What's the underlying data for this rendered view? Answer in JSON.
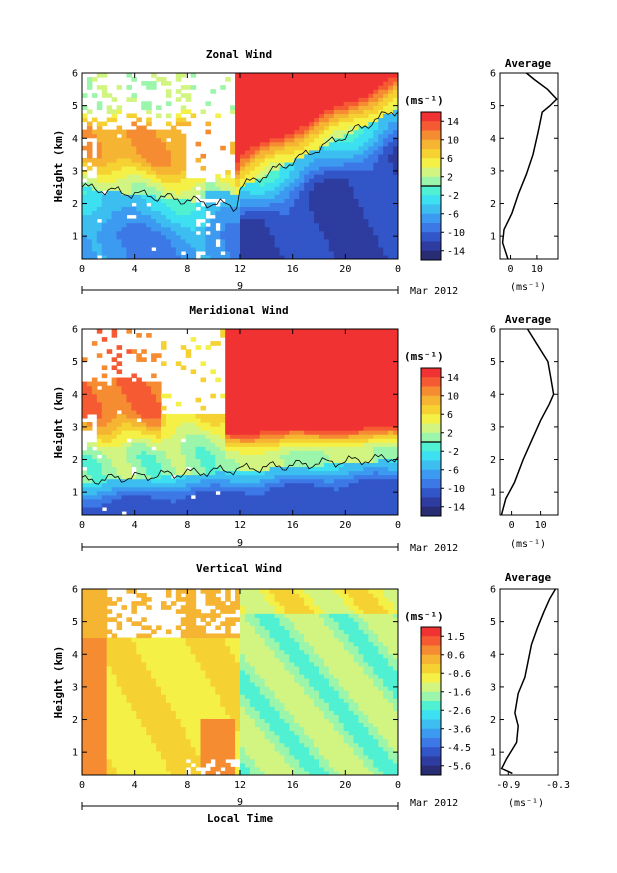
{
  "chart_data": [
    {
      "type": "heatmap",
      "title": "Zonal Wind",
      "ylabel": "Height (km)",
      "x_ticks": [
        "0",
        "4",
        "8",
        "12",
        "16",
        "20",
        "0"
      ],
      "y_ticks": [
        "1",
        "2",
        "3",
        "4",
        "5",
        "6"
      ],
      "xlim": [
        0,
        24
      ],
      "ylim": [
        0.3,
        6
      ],
      "date_tick": "9",
      "date_label": "Mar 2012",
      "colorbar": {
        "unit": "(ms⁻¹)",
        "ticks": [
          "14",
          "10",
          "6",
          "2",
          "-2",
          "-6",
          "-10",
          "-14"
        ],
        "range": [
          -16,
          16
        ]
      },
      "average": {
        "title": "Average",
        "xlabel": "(ms⁻¹)",
        "x_ticks": [
          "0",
          "10"
        ],
        "xlim": [
          -4,
          18
        ],
        "profile": [
          [
            0.3,
            -1
          ],
          [
            0.8,
            -3
          ],
          [
            1.2,
            -2.5
          ],
          [
            1.7,
            0.5
          ],
          [
            2.3,
            3
          ],
          [
            2.9,
            6
          ],
          [
            3.5,
            8.5
          ],
          [
            4.2,
            10.5
          ],
          [
            4.8,
            12
          ],
          [
            5.0,
            15
          ],
          [
            5.2,
            17.5
          ],
          [
            5.5,
            14
          ],
          [
            5.8,
            9
          ],
          [
            6.0,
            6
          ]
        ]
      }
    },
    {
      "type": "heatmap",
      "title": "Meridional Wind",
      "ylabel": "Height (km)",
      "x_ticks": [
        "0",
        "4",
        "8",
        "12",
        "16",
        "20",
        "0"
      ],
      "y_ticks": [
        "1",
        "2",
        "3",
        "4",
        "5",
        "6"
      ],
      "xlim": [
        0,
        24
      ],
      "ylim": [
        0.3,
        6
      ],
      "date_tick": "9",
      "date_label": "Mar 2012",
      "colorbar": {
        "unit": "(ms⁻¹)",
        "ticks": [
          "14",
          "10",
          "6",
          "2",
          "-2",
          "-6",
          "-10",
          "-14"
        ],
        "range": [
          -16,
          16
        ]
      },
      "average": {
        "title": "Average",
        "xlabel": "(ms⁻¹)",
        "x_ticks": [
          "0",
          "10"
        ],
        "xlim": [
          -4,
          16
        ],
        "profile": [
          [
            0.3,
            -3.5
          ],
          [
            0.8,
            -2
          ],
          [
            1.3,
            1
          ],
          [
            2.0,
            4
          ],
          [
            2.6,
            7
          ],
          [
            3.2,
            10
          ],
          [
            3.7,
            13
          ],
          [
            4.0,
            14.5
          ],
          [
            4.5,
            13.5
          ],
          [
            5.0,
            12.5
          ],
          [
            5.5,
            9
          ],
          [
            6.0,
            5.5
          ]
        ]
      }
    },
    {
      "type": "heatmap",
      "title": "Vertical Wind",
      "ylabel": "Height (km)",
      "xlabel": "Local Time",
      "x_ticks": [
        "0",
        "4",
        "8",
        "12",
        "16",
        "20",
        "0"
      ],
      "y_ticks": [
        "1",
        "2",
        "3",
        "4",
        "5",
        "6"
      ],
      "xlim": [
        0,
        24
      ],
      "ylim": [
        0.3,
        6
      ],
      "date_tick": "9",
      "date_label": "Mar 2012",
      "colorbar": {
        "unit": "(ms⁻¹)",
        "ticks": [
          "1.5",
          "0.6",
          "-0.6",
          "-1.6",
          "-2.6",
          "-3.6",
          "-4.5",
          "-5.6"
        ],
        "range": [
          -6,
          2
        ]
      },
      "average": {
        "title": "Average",
        "xlabel": "(ms⁻¹)",
        "x_ticks": [
          "-0.9",
          "-0.3"
        ],
        "xlim": [
          -1.0,
          -0.3
        ],
        "profile": [
          [
            0.35,
            -0.85
          ],
          [
            0.5,
            -0.98
          ],
          [
            0.8,
            -0.92
          ],
          [
            1.3,
            -0.8
          ],
          [
            1.8,
            -0.78
          ],
          [
            2.2,
            -0.82
          ],
          [
            2.8,
            -0.78
          ],
          [
            3.3,
            -0.7
          ],
          [
            3.8,
            -0.66
          ],
          [
            4.3,
            -0.62
          ],
          [
            4.8,
            -0.55
          ],
          [
            5.3,
            -0.47
          ],
          [
            5.7,
            -0.4
          ],
          [
            6.0,
            -0.33
          ]
        ]
      }
    }
  ]
}
